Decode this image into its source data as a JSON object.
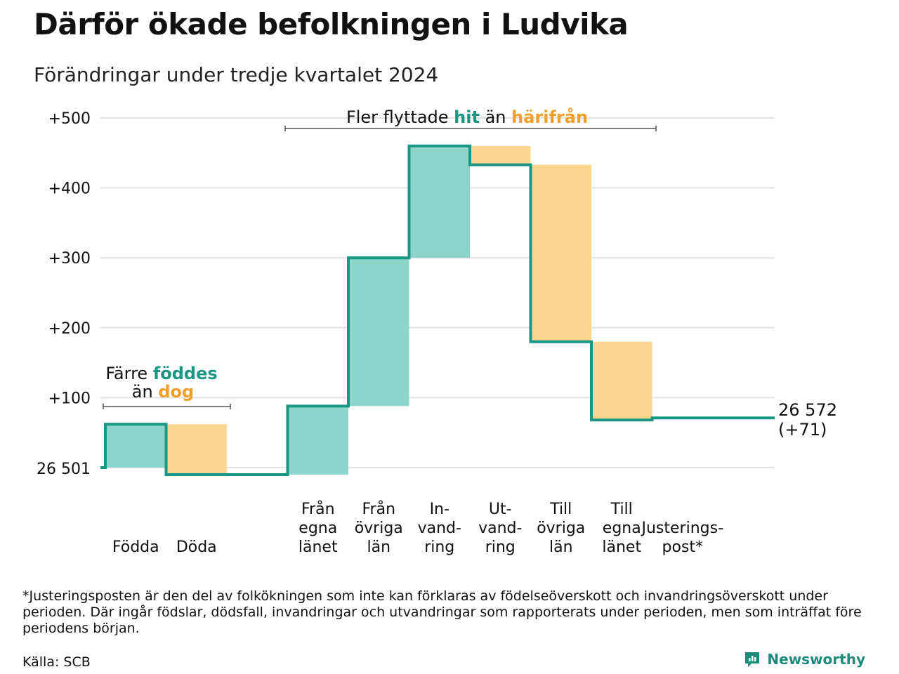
{
  "title": "Därför ökade befolkningen i Ludvika",
  "subtitle": "Förändringar under tredje kvartalet 2024",
  "colors": {
    "teal": "#1a9684",
    "teal_fill": "#8dd5cb",
    "orange": "#f0a02a",
    "orange_fill": "#fad68e",
    "grid": "#e2e2e2",
    "text": "#111111"
  },
  "chart_data": {
    "type": "waterfall",
    "baseline_label": "26 501",
    "y_ticks": [
      "+500",
      "+400",
      "+300",
      "+200",
      "+100"
    ],
    "y_tick_values": [
      500,
      400,
      300,
      200,
      100
    ],
    "ylim": [
      0,
      500
    ],
    "grid": true,
    "categories": [
      {
        "label": [
          "Födda"
        ],
        "start": 0,
        "end": 62,
        "kind": "in"
      },
      {
        "label": [
          "Döda"
        ],
        "start": 62,
        "end": -10,
        "kind": "out"
      },
      {
        "label": [],
        "start": -10,
        "end": -10,
        "kind": "flat"
      },
      {
        "label": [
          "Från",
          "egna",
          "länet"
        ],
        "start": -10,
        "end": 88,
        "kind": "in"
      },
      {
        "label": [
          "Från",
          "övriga",
          "län"
        ],
        "start": 88,
        "end": 300,
        "kind": "in"
      },
      {
        "label": [
          "In-",
          "vand-",
          "ring"
        ],
        "start": 300,
        "end": 460,
        "kind": "in"
      },
      {
        "label": [
          "Ut-",
          "vand-",
          "ring"
        ],
        "start": 460,
        "end": 433,
        "kind": "out"
      },
      {
        "label": [
          "Till",
          "övriga",
          "län"
        ],
        "start": 433,
        "end": 180,
        "kind": "out"
      },
      {
        "label": [
          "Till",
          "egna",
          "länet"
        ],
        "start": 180,
        "end": 68,
        "kind": "out"
      },
      {
        "label": [
          "Justerings-",
          "post*"
        ],
        "start": 68,
        "end": 71,
        "kind": "flat"
      }
    ],
    "end_label": [
      "26 572",
      "(+71)"
    ],
    "annotations": {
      "births": {
        "line1_pre": "Färre",
        "line1_hl": "föddes",
        "line2_pre": "än",
        "line2_hl": "dog"
      },
      "moves": {
        "pre": "Fler flyttade",
        "hl1": "hit",
        "mid": "än",
        "hl2": "härifrån"
      }
    }
  },
  "footnote": "*Justeringsposten är den del av folkökningen som inte kan förklaras av födelseöverskott och invandringsöverskott under perioden. Där ingår födslar, dödsfall, invandringar och utvandringar som rapporterats under perioden, men som inträffat före periodens början.",
  "source": "Källa: SCB",
  "brand": {
    "name": "Newsworthy",
    "icon": "newsworthy-logo-icon"
  }
}
